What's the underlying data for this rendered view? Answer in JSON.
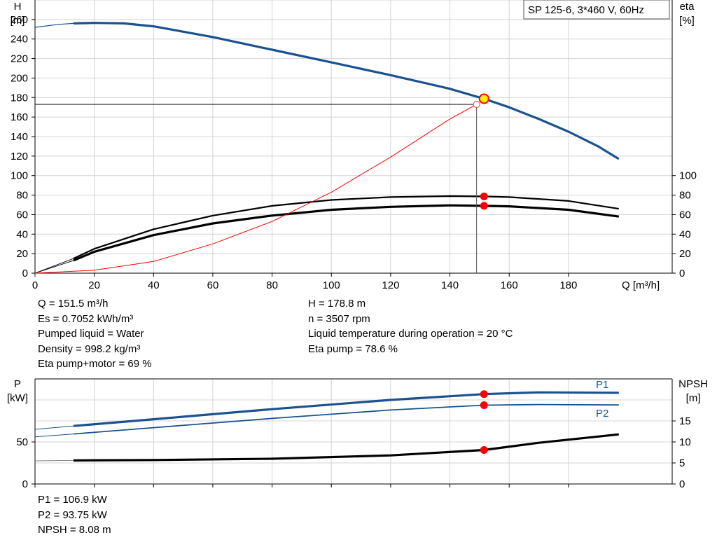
{
  "chart_data": [
    {
      "type": "line",
      "title": "SP 125-6, 3*460 V, 60Hz",
      "xlabel": "Q [m³/h]",
      "ylabel": "H\n[m]",
      "y2label": "eta\n[%]",
      "xlim": [
        0,
        215
      ],
      "ylim": [
        0,
        280
      ],
      "xticks": [
        0,
        20,
        40,
        60,
        80,
        100,
        120,
        140,
        160,
        180
      ],
      "yticks": [
        0,
        20,
        40,
        60,
        80,
        100,
        120,
        140,
        160,
        180,
        200,
        220,
        240,
        260
      ],
      "y2ticks": [
        0,
        20,
        40,
        60,
        80,
        100
      ],
      "grid": true,
      "series": [
        {
          "role": "head",
          "axis": "y",
          "color": "#1a5290",
          "x": [
            0,
            8,
            13,
            20,
            30,
            40,
            60,
            80,
            100,
            120,
            140,
            151.5,
            160,
            170,
            180,
            190,
            197
          ],
          "y": [
            252,
            255,
            256,
            256.5,
            256,
            253,
            242,
            229,
            216,
            203,
            189,
            178.8,
            170,
            158,
            145,
            130,
            117
          ]
        },
        {
          "role": "eta-pump",
          "axis": "y2",
          "color": "#000000",
          "x": [
            0,
            13,
            20,
            40,
            60,
            80,
            100,
            120,
            140,
            151.5,
            160,
            180,
            197
          ],
          "y": [
            0,
            15,
            25,
            45,
            59,
            69,
            75,
            78,
            79,
            78.6,
            78,
            74,
            66
          ]
        },
        {
          "role": "eta-pump-motor",
          "axis": "y2",
          "color": "#000000",
          "x": [
            0,
            13,
            20,
            40,
            60,
            80,
            100,
            120,
            140,
            151.5,
            160,
            180,
            197
          ],
          "y": [
            0,
            13,
            22,
            39,
            51,
            59,
            65,
            68,
            69.5,
            69,
            68.5,
            65,
            58
          ]
        },
        {
          "role": "system-curve",
          "axis": "y",
          "color": "#ff0000",
          "x": [
            0,
            20,
            40,
            60,
            80,
            100,
            120,
            140,
            149
          ],
          "y": [
            0,
            3,
            12,
            30,
            53,
            83,
            119,
            158,
            173
          ]
        }
      ],
      "operating_point": {
        "x": 151.5,
        "y": 178.8
      },
      "reference_line": {
        "x": 149,
        "y": 173
      },
      "eta_markers": [
        78.6,
        69
      ]
    },
    {
      "type": "line",
      "ylabel": "P\n[kW]",
      "y2label": "NPSH\n[m]",
      "xlim": [
        0,
        215
      ],
      "ylim": [
        0,
        125
      ],
      "yticks": [
        0,
        50
      ],
      "y2lim": [
        0,
        25
      ],
      "y2ticks": [
        0,
        5,
        10,
        15
      ],
      "grid": true,
      "series": [
        {
          "name": "P1",
          "axis": "y",
          "color": "#1a5290",
          "x": [
            0,
            13,
            40,
            80,
            120,
            151.5,
            170,
            197
          ],
          "y": [
            65,
            69,
            77,
            89,
            100,
            106.9,
            109,
            108.5
          ]
        },
        {
          "name": "P2",
          "axis": "y",
          "color": "#1a5290",
          "x": [
            0,
            13,
            40,
            80,
            120,
            151.5,
            170,
            197
          ],
          "y": [
            56,
            59.5,
            67,
            78,
            88,
            93.75,
            94.5,
            94
          ]
        },
        {
          "role": "npsh",
          "axis": "y2",
          "color": "#000000",
          "x": [
            0,
            13,
            40,
            80,
            120,
            151.5,
            170,
            197
          ],
          "y": [
            5.5,
            5.6,
            5.7,
            6.0,
            6.8,
            8.08,
            9.8,
            11.8
          ]
        }
      ],
      "markers": {
        "P1": 106.9,
        "P2": 93.75,
        "npsh": 8.08,
        "x": 151.5
      }
    }
  ],
  "readouts": {
    "q": "Q = 151.5 m³/h",
    "es": "Es = 0.7052 kWh/m³",
    "liquid": "Pumped liquid = Water",
    "density": "Density = 998.2 kg/m³",
    "eta_pm": "Eta pump+motor = 69 %",
    "h": "H = 178.8 m",
    "n": "n = 3507 rpm",
    "temp": "Liquid temperature during operation = 20 °C",
    "eta_p": "Eta pump = 78.6 %",
    "p1": "P1 = 106.9 kW",
    "p2": "P2 = 93.75 kW",
    "npsh": "NPSH = 8.08 m"
  }
}
